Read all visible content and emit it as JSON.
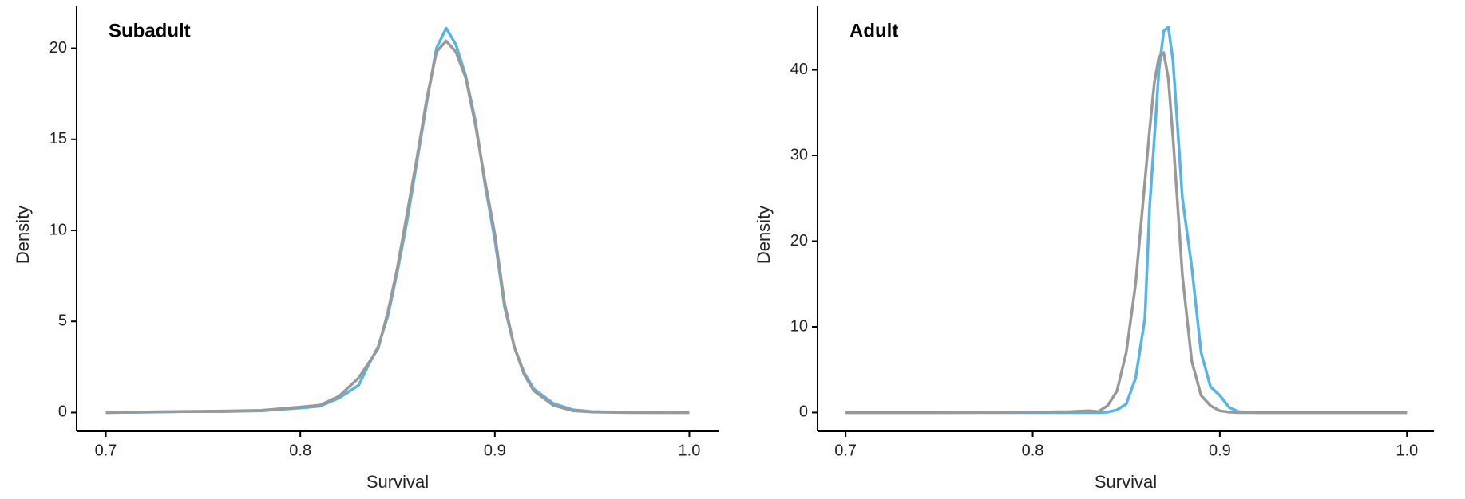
{
  "chart_data": [
    {
      "type": "line",
      "title": "Subadult",
      "xlabel": "Survival",
      "ylabel": "Density",
      "x": [
        0.7,
        0.72,
        0.74,
        0.76,
        0.78,
        0.8,
        0.81,
        0.82,
        0.83,
        0.835,
        0.84,
        0.845,
        0.85,
        0.855,
        0.86,
        0.865,
        0.87,
        0.875,
        0.88,
        0.885,
        0.89,
        0.895,
        0.9,
        0.905,
        0.91,
        0.915,
        0.92,
        0.93,
        0.94,
        0.95,
        0.97,
        1.0
      ],
      "series": [
        {
          "color": "#56b4e9",
          "values": [
            0,
            0.02,
            0.05,
            0.05,
            0.1,
            0.25,
            0.35,
            0.8,
            1.5,
            2.6,
            3.6,
            5.3,
            7.8,
            10.6,
            13.8,
            17,
            20,
            21.1,
            20.2,
            18.5,
            16,
            12.5,
            9.5,
            5.8,
            3.6,
            2.2,
            1.3,
            0.5,
            0.15,
            0.05,
            0.01,
            0
          ]
        },
        {
          "color": "#999999",
          "values": [
            0,
            0.03,
            0.06,
            0.08,
            0.12,
            0.3,
            0.4,
            0.9,
            1.9,
            2.7,
            3.5,
            5.5,
            8,
            11,
            14,
            17.2,
            19.8,
            20.4,
            19.8,
            18.4,
            15.8,
            12.7,
            9.8,
            6,
            3.6,
            2.1,
            1.2,
            0.4,
            0.1,
            0.03,
            0,
            0
          ]
        }
      ],
      "xlim": [
        0.685,
        1.015
      ],
      "xticks": [
        0.7,
        0.8,
        0.9,
        {
          "value": 1,
          "label": "1.0"
        }
      ],
      "ylim": [
        -1.03,
        22.3
      ],
      "yticks": [
        0,
        5,
        10,
        15,
        20
      ]
    },
    {
      "type": "line",
      "title": "Adult",
      "xlabel": "Survival",
      "ylabel": "Density",
      "x": [
        0.7,
        0.75,
        0.8,
        0.82,
        0.83,
        0.835,
        0.84,
        0.845,
        0.85,
        0.855,
        0.86,
        0.8625,
        0.865,
        0.8675,
        0.87,
        0.8725,
        0.875,
        0.8775,
        0.88,
        0.885,
        0.89,
        0.895,
        0.9,
        0.905,
        0.91,
        0.92,
        0.95,
        1.0
      ],
      "series": [
        {
          "color": "#56b4e9",
          "values": [
            0,
            0,
            0,
            0,
            0,
            0,
            0.05,
            0.3,
            1,
            4,
            11,
            24,
            32,
            40,
            44.5,
            45,
            41,
            33,
            25,
            17,
            7,
            3,
            2,
            0.6,
            0.1,
            0,
            0,
            0
          ]
        },
        {
          "color": "#999999",
          "values": [
            0,
            0,
            0.05,
            0.1,
            0.2,
            0.1,
            0.8,
            2.5,
            7,
            15,
            27,
            33,
            38.5,
            41.5,
            42,
            39,
            32,
            24,
            16,
            6,
            2,
            0.8,
            0.2,
            0.05,
            0,
            0,
            0,
            0
          ]
        }
      ],
      "xlim": [
        0.685,
        1.0144
      ],
      "xticks": [
        0.7,
        0.8,
        0.9,
        {
          "value": 1,
          "label": "1.0"
        }
      ],
      "ylim": [
        -2.19,
        47.4
      ],
      "yticks": [
        0,
        10,
        20,
        30,
        40
      ]
    }
  ]
}
